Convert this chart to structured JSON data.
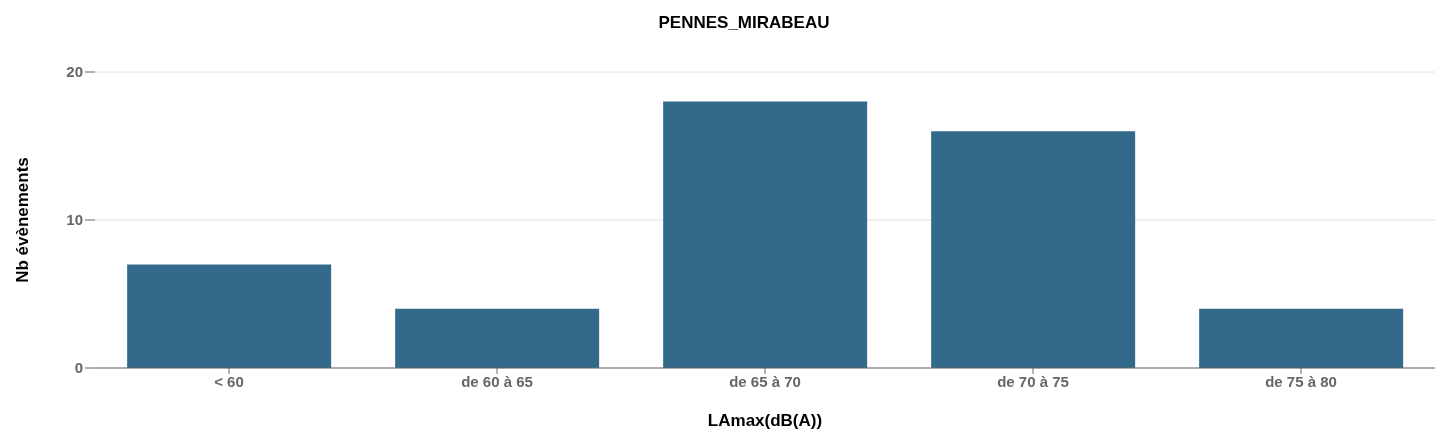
{
  "chart_data": {
    "type": "bar",
    "title": "PENNES_MIRABEAU",
    "xlabel": "LAmax(dB(A))",
    "ylabel": "Nb évènements",
    "categories": [
      "< 60",
      "de 60 à 65",
      "de 65 à 70",
      "de 70 à 75",
      "de 75 à 80"
    ],
    "values": [
      7,
      4,
      18,
      16,
      4
    ],
    "color": "#336a8c",
    "ylim": [
      0,
      20
    ],
    "yticks": [
      0,
      10,
      20
    ],
    "grid": "y",
    "legend": false
  }
}
